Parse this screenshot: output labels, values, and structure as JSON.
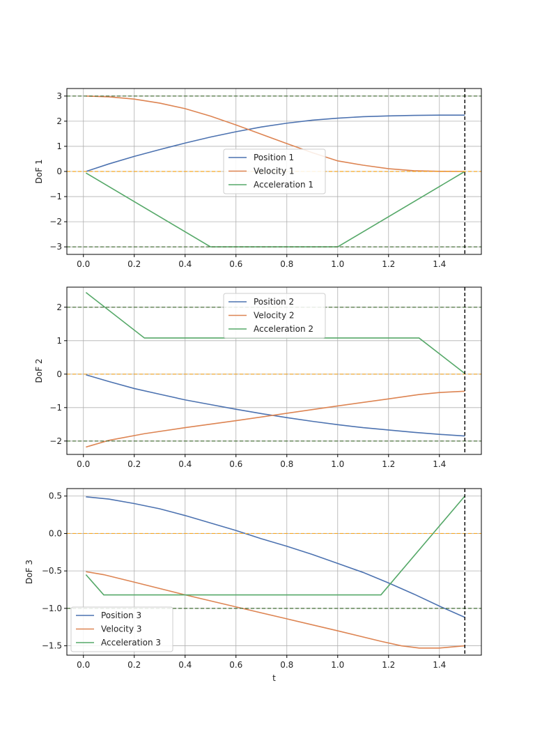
{
  "chart_data": [
    {
      "type": "line",
      "ylabel": "DoF 1",
      "xlabel": "",
      "xlim": [
        -0.065,
        1.565
      ],
      "ylim": [
        -3.3,
        3.3
      ],
      "xticks": [
        0.0,
        0.2,
        0.4,
        0.6,
        0.8,
        1.0,
        1.2,
        1.4
      ],
      "xtick_labels": [
        "0.0",
        "0.2",
        "0.4",
        "0.6",
        "0.8",
        "1.0",
        "1.2",
        "1.4"
      ],
      "yticks": [
        -3,
        -2,
        -1,
        0,
        1,
        2,
        3
      ],
      "ytick_labels": [
        "−3",
        "−2",
        "−1",
        "0",
        "1",
        "2",
        "3"
      ],
      "grid": true,
      "legend": "center",
      "reference_lines": {
        "y_limits_green": [
          3,
          -3
        ],
        "y_zero_orange": 0,
        "x_end_black": 1.5
      },
      "series": [
        {
          "name": "Position 1",
          "color": "#4c72b0",
          "points": [
            [
              0.01,
              0.0
            ],
            [
              0.1,
              0.3
            ],
            [
              0.2,
              0.6
            ],
            [
              0.3,
              0.87
            ],
            [
              0.4,
              1.13
            ],
            [
              0.5,
              1.37
            ],
            [
              0.6,
              1.58
            ],
            [
              0.7,
              1.77
            ],
            [
              0.8,
              1.92
            ],
            [
              0.9,
              2.04
            ],
            [
              1.0,
              2.12
            ],
            [
              1.1,
              2.18
            ],
            [
              1.2,
              2.21
            ],
            [
              1.3,
              2.23
            ],
            [
              1.4,
              2.24
            ],
            [
              1.5,
              2.24
            ]
          ]
        },
        {
          "name": "Velocity 1",
          "color": "#dd8452",
          "points": [
            [
              0.01,
              3.0
            ],
            [
              0.1,
              2.97
            ],
            [
              0.2,
              2.88
            ],
            [
              0.3,
              2.72
            ],
            [
              0.4,
              2.5
            ],
            [
              0.5,
              2.2
            ],
            [
              0.6,
              1.85
            ],
            [
              0.7,
              1.48
            ],
            [
              0.8,
              1.11
            ],
            [
              0.9,
              0.75
            ],
            [
              1.0,
              0.42
            ],
            [
              1.1,
              0.25
            ],
            [
              1.2,
              0.11
            ],
            [
              1.3,
              0.03
            ],
            [
              1.4,
              0.005
            ],
            [
              1.5,
              0.0
            ]
          ]
        },
        {
          "name": "Acceleration 1",
          "color": "#55a868",
          "points": [
            [
              0.01,
              -0.06
            ],
            [
              0.5,
              -3.0
            ],
            [
              1.0,
              -3.0
            ],
            [
              1.5,
              0.0
            ]
          ]
        }
      ]
    },
    {
      "type": "line",
      "ylabel": "DoF 2",
      "xlabel": "",
      "xlim": [
        -0.065,
        1.565
      ],
      "ylim": [
        -2.4,
        2.6
      ],
      "xticks": [
        0.0,
        0.2,
        0.4,
        0.6,
        0.8,
        1.0,
        1.2,
        1.4
      ],
      "xtick_labels": [
        "0.0",
        "0.2",
        "0.4",
        "0.6",
        "0.8",
        "1.0",
        "1.2",
        "1.4"
      ],
      "yticks": [
        -2,
        -1,
        0,
        1,
        2
      ],
      "ytick_labels": [
        "−2",
        "−1",
        "0",
        "1",
        "2"
      ],
      "grid": true,
      "legend": "upper center",
      "reference_lines": {
        "y_limits_green": [
          2,
          -2
        ],
        "y_zero_orange": 0,
        "x_end_black": 1.5
      },
      "series": [
        {
          "name": "Position 2",
          "color": "#4c72b0",
          "points": [
            [
              0.01,
              -0.02
            ],
            [
              0.1,
              -0.22
            ],
            [
              0.2,
              -0.43
            ],
            [
              0.3,
              -0.6
            ],
            [
              0.4,
              -0.77
            ],
            [
              0.5,
              -0.91
            ],
            [
              0.6,
              -1.05
            ],
            [
              0.7,
              -1.18
            ],
            [
              0.8,
              -1.3
            ],
            [
              0.9,
              -1.41
            ],
            [
              1.0,
              -1.51
            ],
            [
              1.1,
              -1.6
            ],
            [
              1.2,
              -1.67
            ],
            [
              1.3,
              -1.74
            ],
            [
              1.4,
              -1.8
            ],
            [
              1.5,
              -1.85
            ]
          ]
        },
        {
          "name": "Velocity 2",
          "color": "#dd8452",
          "points": [
            [
              0.01,
              -2.18
            ],
            [
              0.1,
              -1.98
            ],
            [
              0.24,
              -1.78
            ],
            [
              0.4,
              -1.6
            ],
            [
              0.6,
              -1.39
            ],
            [
              0.8,
              -1.17
            ],
            [
              1.0,
              -0.95
            ],
            [
              1.2,
              -0.74
            ],
            [
              1.32,
              -0.61
            ],
            [
              1.4,
              -0.55
            ],
            [
              1.5,
              -0.51
            ]
          ]
        },
        {
          "name": "Acceleration 2",
          "color": "#55a868",
          "points": [
            [
              0.01,
              2.44
            ],
            [
              0.24,
              1.08
            ],
            [
              1.32,
              1.08
            ],
            [
              1.5,
              0.02
            ]
          ]
        }
      ]
    },
    {
      "type": "line",
      "ylabel": "DoF 3",
      "xlabel": "t",
      "xlim": [
        -0.065,
        1.565
      ],
      "ylim": [
        -1.625,
        0.6
      ],
      "xticks": [
        0.0,
        0.2,
        0.4,
        0.6,
        0.8,
        1.0,
        1.2,
        1.4
      ],
      "xtick_labels": [
        "0.0",
        "0.2",
        "0.4",
        "0.6",
        "0.8",
        "1.0",
        "1.2",
        "1.4"
      ],
      "yticks": [
        -1.5,
        -1.0,
        -0.5,
        0.0,
        0.5
      ],
      "ytick_labels": [
        "−1.5",
        "−1.0",
        "−0.5",
        "0.0",
        "0.5"
      ],
      "grid": true,
      "legend": "lower left",
      "reference_lines": {
        "y_limits_green": [
          -1.0
        ],
        "y_zero_orange": 0,
        "x_end_black": 1.5
      },
      "series": [
        {
          "name": "Position 3",
          "color": "#4c72b0",
          "points": [
            [
              0.01,
              0.49
            ],
            [
              0.1,
              0.46
            ],
            [
              0.2,
              0.4
            ],
            [
              0.3,
              0.33
            ],
            [
              0.4,
              0.24
            ],
            [
              0.5,
              0.14
            ],
            [
              0.6,
              0.04
            ],
            [
              0.7,
              -0.07
            ],
            [
              0.8,
              -0.17
            ],
            [
              0.9,
              -0.28
            ],
            [
              1.0,
              -0.4
            ],
            [
              1.1,
              -0.52
            ],
            [
              1.2,
              -0.66
            ],
            [
              1.3,
              -0.81
            ],
            [
              1.4,
              -0.97
            ],
            [
              1.5,
              -1.12
            ]
          ]
        },
        {
          "name": "Velocity 3",
          "color": "#dd8452",
          "points": [
            [
              0.01,
              -0.51
            ],
            [
              0.08,
              -0.55
            ],
            [
              0.2,
              -0.65
            ],
            [
              0.4,
              -0.82
            ],
            [
              0.6,
              -0.98
            ],
            [
              0.8,
              -1.14
            ],
            [
              1.0,
              -1.3
            ],
            [
              1.17,
              -1.44
            ],
            [
              1.25,
              -1.5
            ],
            [
              1.32,
              -1.53
            ],
            [
              1.4,
              -1.53
            ],
            [
              1.5,
              -1.5
            ]
          ]
        },
        {
          "name": "Acceleration 3",
          "color": "#55a868",
          "points": [
            [
              0.01,
              -0.55
            ],
            [
              0.08,
              -0.82
            ],
            [
              1.17,
              -0.82
            ],
            [
              1.5,
              0.5
            ]
          ]
        }
      ]
    }
  ]
}
